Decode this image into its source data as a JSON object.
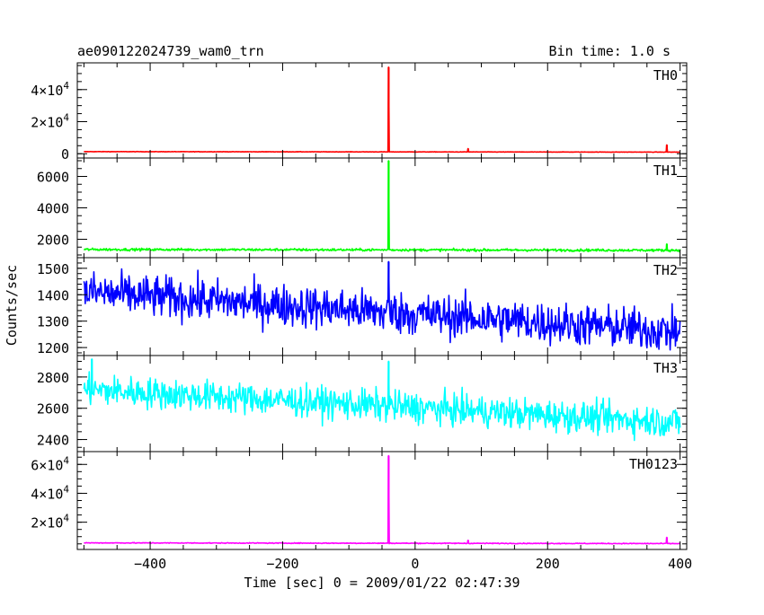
{
  "header": {
    "title": "ae090122024739_wam0_trn",
    "bin_time": "Bin time: 1.0 s"
  },
  "y_axis_label": "Counts/sec",
  "chart_data": {
    "type": "line",
    "xlabel": "Time [sec] 0 = 2009/01/22 02:47:39",
    "xlim": [
      -510,
      410
    ],
    "x_ticks": [
      {
        "value": -400,
        "label": "−400"
      },
      {
        "value": -200,
        "label": "−200"
      },
      {
        "value": 0,
        "label": "0"
      },
      {
        "value": 200,
        "label": "200"
      },
      {
        "value": 400,
        "label": "400"
      }
    ],
    "x_minor_step": 50,
    "data_range": [
      -500,
      400
    ],
    "bin_time_s": 1.0,
    "panels": [
      {
        "name": "TH0",
        "color": "#ff0000",
        "ylim": [
          -1000,
          55000
        ],
        "y_ticks": [
          {
            "value": 0,
            "label": "0",
            "exp": ""
          },
          {
            "value": 20000,
            "label": "2×10",
            "exp": "4"
          },
          {
            "value": 40000,
            "label": "4×10",
            "exp": "4"
          }
        ],
        "y_minor_step": 5000,
        "baseline": {
          "start": 1300,
          "end": 1000,
          "noise": 60
        },
        "spikes": [
          {
            "x": -40,
            "value": 54000
          },
          {
            "x": 80,
            "value": 3200
          },
          {
            "x": 380,
            "value": 5500
          }
        ]
      },
      {
        "name": "TH1",
        "color": "#00ff00",
        "ylim": [
          1000,
          7000
        ],
        "y_ticks": [
          {
            "value": 2000,
            "label": "2000",
            "exp": ""
          },
          {
            "value": 4000,
            "label": "4000",
            "exp": ""
          },
          {
            "value": 6000,
            "label": "6000",
            "exp": ""
          }
        ],
        "y_minor_step": 500,
        "baseline": {
          "start": 1350,
          "end": 1300,
          "noise": 40
        },
        "spikes": [
          {
            "x": -40,
            "value": 7000
          },
          {
            "x": 380,
            "value": 1700
          }
        ]
      },
      {
        "name": "TH2",
        "color": "#0000ff",
        "ylim": [
          1180,
          1530
        ],
        "y_ticks": [
          {
            "value": 1200,
            "label": "1200",
            "exp": ""
          },
          {
            "value": 1300,
            "label": "1300",
            "exp": ""
          },
          {
            "value": 1400,
            "label": "1400",
            "exp": ""
          },
          {
            "value": 1500,
            "label": "1500",
            "exp": ""
          }
        ],
        "y_minor_step": 20,
        "baseline": {
          "start": 1410,
          "end": 1260,
          "noise": 40
        },
        "spikes": [
          {
            "x": -40,
            "value": 1525
          }
        ]
      },
      {
        "name": "TH3",
        "color": "#00ffff",
        "ylim": [
          2340,
          2920
        ],
        "y_ticks": [
          {
            "value": 2400,
            "label": "2400",
            "exp": ""
          },
          {
            "value": 2600,
            "label": "2600",
            "exp": ""
          },
          {
            "value": 2800,
            "label": "2800",
            "exp": ""
          }
        ],
        "y_minor_step": 50,
        "baseline": {
          "start": 2720,
          "end": 2510,
          "noise": 50
        },
        "spikes": [
          {
            "x": -488,
            "value": 2915
          },
          {
            "x": -40,
            "value": 2900
          }
        ]
      },
      {
        "name": "TH0123",
        "color": "#ff00ff",
        "ylim": [
          3000,
          67000
        ],
        "y_ticks": [
          {
            "value": 20000,
            "label": "2×10",
            "exp": "4"
          },
          {
            "value": 40000,
            "label": "4×10",
            "exp": "4"
          },
          {
            "value": 60000,
            "label": "6×10",
            "exp": "4"
          }
        ],
        "y_minor_step": 5000,
        "baseline": {
          "start": 5700,
          "end": 5200,
          "noise": 150
        },
        "spikes": [
          {
            "x": -40,
            "value": 66000
          },
          {
            "x": 80,
            "value": 7500
          },
          {
            "x": 380,
            "value": 9500
          }
        ]
      }
    ]
  }
}
